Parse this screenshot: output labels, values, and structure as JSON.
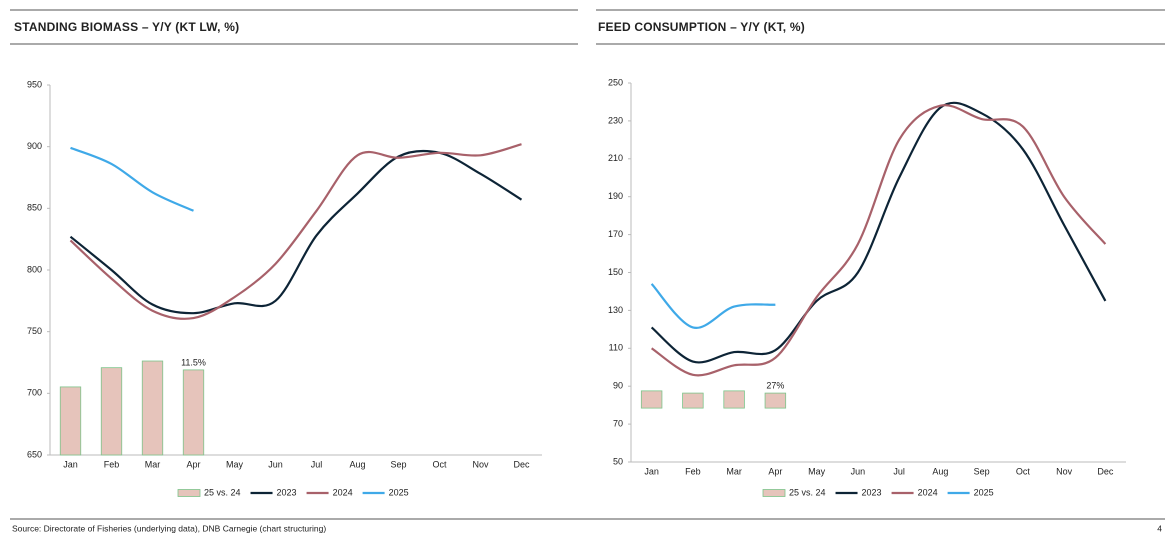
{
  "chart_data": [
    {
      "type": "line",
      "title": "STANDING BIOMASS – Y/Y (KT LW, %)",
      "categories": [
        "Jan",
        "Feb",
        "Mar",
        "Apr",
        "May",
        "Jun",
        "Jul",
        "Aug",
        "Sep",
        "Oct",
        "Nov",
        "Dec"
      ],
      "ylim": [
        650,
        950
      ],
      "yticks": [
        650,
        700,
        750,
        800,
        850,
        900,
        950
      ],
      "y2lim": [
        0,
        50
      ],
      "series": [
        {
          "name": "25 vs. 24",
          "type": "bar",
          "axis": "y2",
          "color": "#e6c4bb",
          "values": [
            9.2,
            11.8,
            12.7,
            11.5,
            null,
            null,
            null,
            null,
            null,
            null,
            null,
            null
          ],
          "value_labels": [
            null,
            null,
            null,
            "11.5%",
            null,
            null,
            null,
            null,
            null,
            null,
            null,
            null
          ]
        },
        {
          "name": "2023",
          "color": "#0d2436",
          "values": [
            827,
            800,
            772,
            765,
            773,
            775,
            828,
            862,
            892,
            895,
            878,
            857
          ]
        },
        {
          "name": "2024",
          "color": "#a8616a",
          "values": [
            824,
            793,
            767,
            761,
            778,
            805,
            848,
            893,
            891,
            895,
            893,
            902
          ]
        },
        {
          "name": "2025",
          "color": "#3fa9e8",
          "values": [
            899,
            886,
            863,
            848,
            null,
            null,
            null,
            null,
            null,
            null,
            null,
            null
          ]
        }
      ]
    },
    {
      "type": "line",
      "title": "FEED CONSUMPTION – Y/Y (KT, %)",
      "categories": [
        "Jan",
        "Feb",
        "Mar",
        "Apr",
        "May",
        "Jun",
        "Jul",
        "Aug",
        "Sep",
        "Oct",
        "Nov",
        "Dec"
      ],
      "ylim": [
        50,
        250
      ],
      "yticks": [
        50,
        70,
        90,
        110,
        130,
        150,
        170,
        190,
        210,
        230,
        250
      ],
      "y2lim": [
        -97,
        585
      ],
      "series": [
        {
          "name": "25 vs. 24",
          "type": "bar",
          "axis": "y2",
          "color": "#e6c4bb",
          "values": [
            31,
            27,
            31,
            27,
            null,
            null,
            null,
            null,
            null,
            null,
            null,
            null
          ],
          "value_labels": [
            null,
            null,
            null,
            "27%",
            null,
            null,
            null,
            null,
            null,
            null,
            null,
            null
          ]
        },
        {
          "name": "2023",
          "color": "#0d2436",
          "values": [
            121,
            103,
            108,
            109,
            135,
            150,
            200,
            237,
            234,
            215,
            175,
            135
          ]
        },
        {
          "name": "2024",
          "color": "#a8616a",
          "values": [
            110,
            96,
            101,
            105,
            137,
            165,
            220,
            238,
            231,
            227,
            190,
            165
          ]
        },
        {
          "name": "2025",
          "color": "#3fa9e8",
          "values": [
            144,
            121,
            132,
            133,
            null,
            null,
            null,
            null,
            null,
            null,
            null,
            null
          ]
        }
      ]
    }
  ],
  "footer": {
    "source": "Source: Directorate of Fisheries (underlying data), DNB Carnegie (chart structuring)",
    "page": "4"
  }
}
